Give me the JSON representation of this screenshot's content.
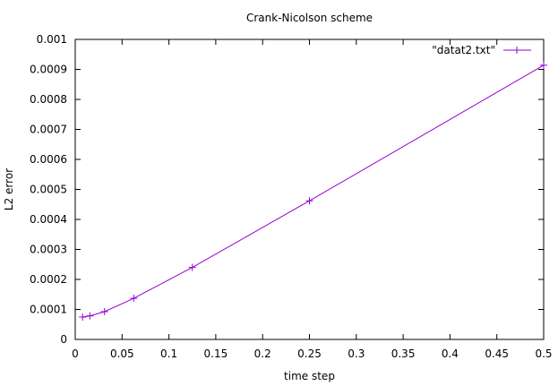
{
  "chart_data": {
    "type": "line",
    "title": "Crank-Nicolson scheme",
    "xlabel": "time step",
    "ylabel": "L2 error",
    "xlim": [
      0,
      0.5
    ],
    "ylim": [
      0,
      0.001
    ],
    "xticks": [
      "0",
      "0.05",
      "0.1",
      "0.15",
      "0.2",
      "0.25",
      "0.3",
      "0.35",
      "0.4",
      "0.45",
      "0.5"
    ],
    "xtick_values": [
      0,
      0.05,
      0.1,
      0.15,
      0.2,
      0.25,
      0.3,
      0.35,
      0.4,
      0.45,
      0.5
    ],
    "yticks": [
      "0",
      "0.0001",
      "0.0002",
      "0.0003",
      "0.0004",
      "0.0005",
      "0.0006",
      "0.0007",
      "0.0008",
      "0.0009",
      "0.001"
    ],
    "ytick_values": [
      0,
      0.0001,
      0.0002,
      0.0003,
      0.0004,
      0.0005,
      0.0006,
      0.0007,
      0.0008,
      0.0009,
      0.001
    ],
    "grid": false,
    "legend_position": "top-right",
    "series": [
      {
        "name": "\"datat2.txt\"",
        "color": "#9400d3",
        "marker": "plus",
        "x": [
          0.0078125,
          0.015625,
          0.03125,
          0.0625,
          0.125,
          0.25,
          0.5
        ],
        "y": [
          7.45e-05,
          7.85e-05,
          9.25e-05,
          0.000137,
          0.00024,
          0.000462,
          0.000914
        ]
      }
    ]
  }
}
